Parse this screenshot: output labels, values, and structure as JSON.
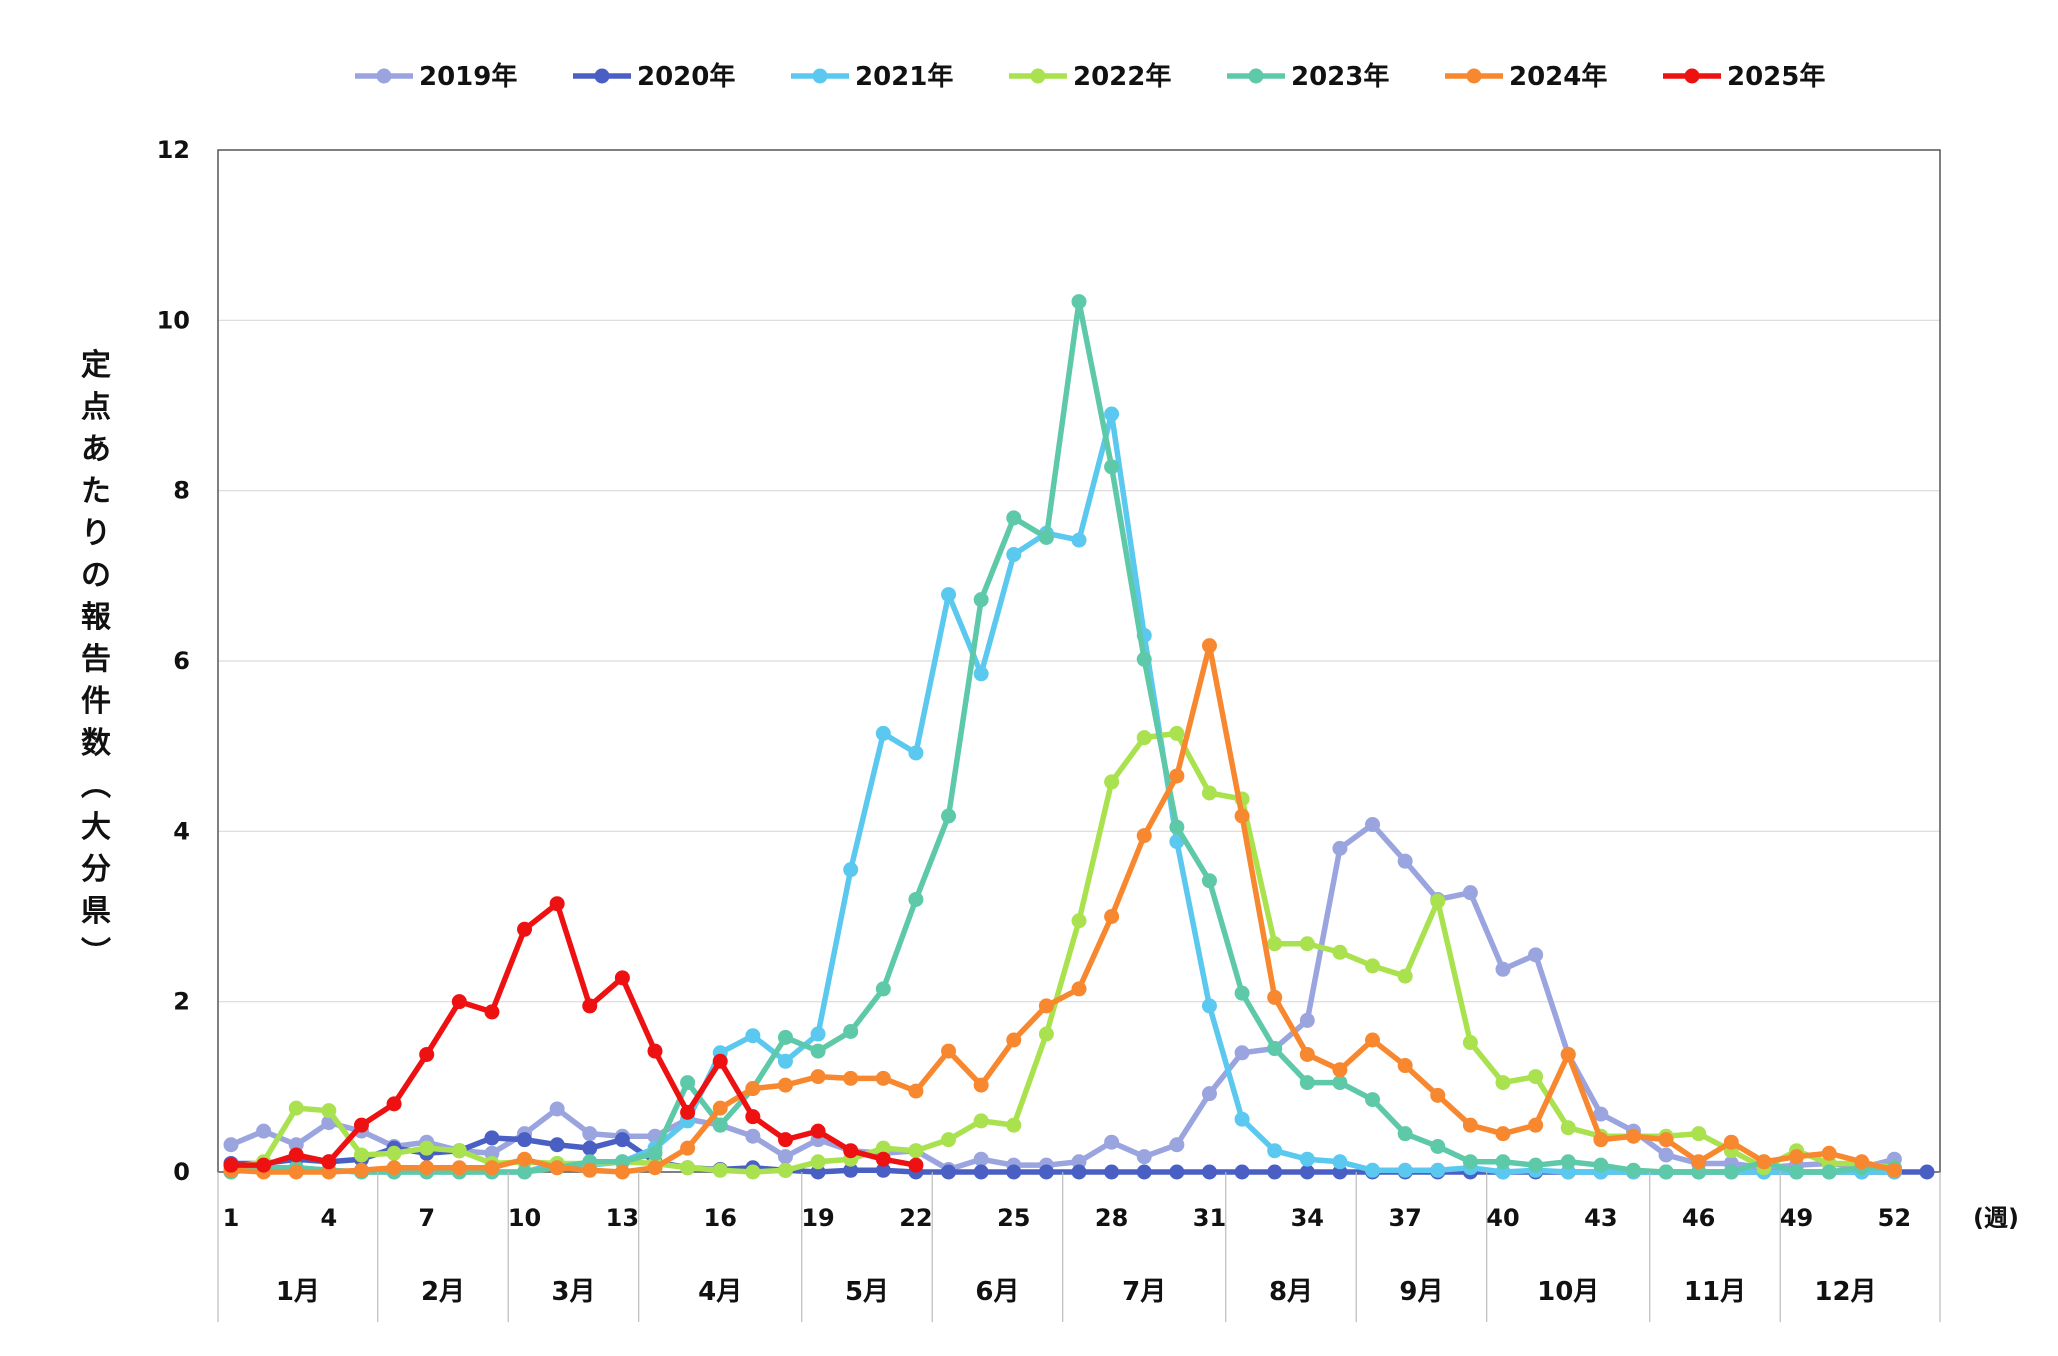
{
  "chart_data": {
    "type": "line",
    "ylabel": "定点あたりの報告件数（大分県）",
    "xlabel": "(週)",
    "ylim": [
      0,
      12
    ],
    "yticks": [
      "0",
      "2",
      "4",
      "6",
      "8",
      "10",
      "12"
    ],
    "xlim": [
      1,
      53
    ],
    "xticks": [
      "1",
      "4",
      "7",
      "10",
      "13",
      "16",
      "19",
      "22",
      "25",
      "28",
      "31",
      "34",
      "37",
      "40",
      "43",
      "46",
      "49",
      "52"
    ],
    "grid": true,
    "legend_position": "top",
    "months": [
      "1月",
      "2月",
      "3月",
      "4月",
      "5月",
      "6月",
      "7月",
      "8月",
      "9月",
      "10月",
      "11月",
      "12月"
    ],
    "series": [
      {
        "name": "2019年",
        "color": "#9aa4df",
        "values": [
          0.32,
          0.48,
          0.32,
          0.58,
          0.48,
          0.3,
          0.35,
          0.25,
          0.22,
          0.45,
          0.74,
          0.45,
          0.42,
          0.42,
          0.62,
          0.55,
          0.42,
          0.18,
          0.38,
          0.25,
          0.22,
          0.25,
          0.03,
          0.15,
          0.08,
          0.08,
          0.12,
          0.35,
          0.18,
          0.32,
          0.92,
          1.4,
          1.45,
          1.78,
          3.8,
          4.08,
          3.65,
          3.2,
          3.28,
          2.38,
          2.55,
          1.38,
          0.68,
          0.48,
          0.2,
          0.1,
          0.1,
          0.05,
          0.08,
          0.1,
          0.05,
          0.15,
          null
        ]
      },
      {
        "name": "2020年",
        "color": "#4a5fc4",
        "values": [
          0.1,
          0.1,
          0.15,
          0.12,
          0.15,
          0.28,
          0.22,
          0.25,
          0.4,
          0.38,
          0.32,
          0.28,
          0.38,
          0.12,
          0.05,
          0.03,
          0.05,
          0.02,
          0,
          0.02,
          0.02,
          0,
          0,
          0,
          0,
          0,
          0,
          0,
          0,
          0,
          0,
          0,
          0,
          0,
          0,
          0,
          0,
          0,
          0,
          0,
          0,
          0,
          0,
          0,
          0,
          0,
          0,
          0,
          0,
          0,
          0,
          0,
          0
        ]
      },
      {
        "name": "2021年",
        "color": "#5bc8ef",
        "values": [
          0,
          0.05,
          0.05,
          0.02,
          0,
          0,
          0,
          0,
          0,
          0,
          0.1,
          0.08,
          0.12,
          0.28,
          0.6,
          1.4,
          1.6,
          1.3,
          1.62,
          3.55,
          5.15,
          4.92,
          6.78,
          5.85,
          7.25,
          7.5,
          7.42,
          8.9,
          6.3,
          3.88,
          1.95,
          0.62,
          0.25,
          0.15,
          0.12,
          0.02,
          0.02,
          0.02,
          0.05,
          0,
          0.02,
          0,
          0,
          0,
          0,
          0,
          0,
          0,
          0,
          0,
          0,
          0,
          null
        ]
      },
      {
        "name": "2022年",
        "color": "#a9e24e",
        "values": [
          0.05,
          0.12,
          0.75,
          0.72,
          0.2,
          0.22,
          0.28,
          0.25,
          0.1,
          0.12,
          0.1,
          0.1,
          0.12,
          0.1,
          0.05,
          0.02,
          0,
          0.02,
          0.12,
          0.15,
          0.28,
          0.25,
          0.38,
          0.6,
          0.55,
          1.62,
          2.95,
          4.58,
          5.1,
          5.15,
          4.45,
          4.38,
          2.68,
          2.68,
          2.58,
          2.42,
          2.3,
          3.18,
          1.52,
          1.05,
          1.12,
          0.52,
          0.42,
          0.42,
          0.42,
          0.45,
          0.25,
          0.05,
          0.25,
          0.1,
          0.1,
          0.05,
          null
        ]
      },
      {
        "name": "2023年",
        "color": "#5ec9a8",
        "values": [
          0,
          0.05,
          0.05,
          0.02,
          0,
          0,
          0,
          0,
          0,
          0,
          0.05,
          0.12,
          0.12,
          0.22,
          1.05,
          0.55,
          0.98,
          1.58,
          1.42,
          1.65,
          2.15,
          3.2,
          4.18,
          6.72,
          7.68,
          7.45,
          10.22,
          8.28,
          6.02,
          4.05,
          3.42,
          2.1,
          1.45,
          1.05,
          1.05,
          0.85,
          0.45,
          0.3,
          0.12,
          0.12,
          0.08,
          0.12,
          0.08,
          0.02,
          0,
          0,
          0,
          0.12,
          0,
          0,
          0.05,
          0.05,
          null
        ]
      },
      {
        "name": "2024年",
        "color": "#f7882f",
        "values": [
          0.02,
          0,
          0,
          0,
          0.02,
          0.05,
          0.05,
          0.05,
          0.05,
          0.15,
          0.05,
          0.02,
          0,
          0.05,
          0.28,
          0.75,
          0.98,
          1.02,
          1.12,
          1.1,
          1.1,
          0.95,
          1.42,
          1.02,
          1.55,
          1.95,
          2.15,
          3.0,
          3.95,
          4.65,
          6.18,
          4.18,
          2.05,
          1.38,
          1.2,
          1.55,
          1.25,
          0.9,
          0.55,
          0.45,
          0.55,
          1.38,
          0.38,
          0.42,
          0.38,
          0.12,
          0.35,
          0.12,
          0.18,
          0.22,
          0.12,
          0.02,
          null
        ]
      },
      {
        "name": "2025年",
        "color": "#ee1111",
        "values": [
          0.08,
          0.08,
          0.2,
          0.12,
          0.55,
          0.8,
          1.38,
          2.0,
          1.88,
          2.85,
          3.15,
          1.95,
          2.28,
          1.42,
          0.7,
          1.3,
          0.65,
          0.38,
          0.48,
          0.25,
          0.15,
          0.08,
          null,
          null,
          null,
          null,
          null,
          null,
          null,
          null,
          null,
          null,
          null,
          null,
          null,
          null,
          null,
          null,
          null,
          null,
          null,
          null,
          null,
          null,
          null,
          null,
          null,
          null,
          null,
          null,
          null,
          null,
          null
        ]
      }
    ]
  }
}
